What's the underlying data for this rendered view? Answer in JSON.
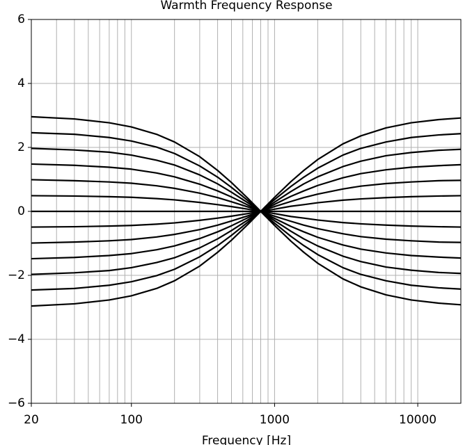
{
  "chart_data": {
    "type": "line",
    "title": "Warmth Frequency Response",
    "x_label": "Frequency [Hz]",
    "log_x": true,
    "grid": true,
    "xlim": [
      20,
      20000
    ],
    "xticks": [
      20,
      100,
      1000,
      10000
    ],
    "xminorticks": [
      30,
      40,
      50,
      60,
      70,
      80,
      90,
      200,
      300,
      400,
      500,
      600,
      700,
      800,
      900,
      2000,
      3000,
      4000,
      5000,
      6000,
      7000,
      8000,
      9000
    ],
    "ylim": [
      -6,
      6
    ],
    "yticks": [
      {
        "value": -6,
        "label": "−6"
      },
      {
        "value": -4,
        "label": "−4"
      },
      {
        "value": -2,
        "label": "−2"
      },
      0,
      2,
      4,
      6
    ],
    "x": [
      20,
      40,
      70,
      100,
      150,
      200,
      300,
      400,
      500,
      650,
      800,
      1000,
      1300,
      1600,
      2000,
      3000,
      4000,
      6000,
      9000,
      14000,
      20000
    ],
    "series": [
      {
        "color": "#000000",
        "values": [
          2.96,
          2.89,
          2.77,
          2.64,
          2.41,
          2.17,
          1.71,
          1.28,
          0.9,
          0.41,
          0,
          -0.44,
          -0.93,
          -1.28,
          -1.62,
          -2.11,
          -2.36,
          -2.61,
          -2.77,
          -2.87,
          -2.92
        ]
      },
      {
        "color": "#000000",
        "values": [
          2.46,
          2.41,
          2.31,
          2.2,
          2.01,
          1.81,
          1.42,
          1.07,
          0.75,
          0.34,
          0,
          -0.37,
          -0.78,
          -1.07,
          -1.35,
          -1.76,
          -1.97,
          -2.17,
          -2.31,
          -2.39,
          -2.43
        ]
      },
      {
        "color": "#000000",
        "values": [
          1.97,
          1.92,
          1.85,
          1.76,
          1.6,
          1.45,
          1.14,
          0.86,
          0.6,
          0.27,
          0,
          -0.29,
          -0.62,
          -0.86,
          -1.08,
          -1.4,
          -1.57,
          -1.74,
          -1.84,
          -1.91,
          -1.94
        ]
      },
      {
        "color": "#000000",
        "values": [
          1.48,
          1.44,
          1.38,
          1.32,
          1.2,
          1.08,
          0.85,
          0.64,
          0.45,
          0.2,
          0,
          -0.22,
          -0.47,
          -0.64,
          -0.81,
          -1.05,
          -1.18,
          -1.3,
          -1.38,
          -1.43,
          -1.46
        ]
      },
      {
        "color": "#000000",
        "values": [
          0.99,
          0.96,
          0.92,
          0.88,
          0.8,
          0.72,
          0.57,
          0.43,
          0.3,
          0.14,
          0,
          -0.15,
          -0.31,
          -0.43,
          -0.54,
          -0.7,
          -0.79,
          -0.87,
          -0.92,
          -0.96,
          -0.97
        ]
      },
      {
        "color": "#000000",
        "values": [
          0.49,
          0.48,
          0.46,
          0.44,
          0.4,
          0.36,
          0.28,
          0.21,
          0.15,
          0.07,
          0,
          -0.07,
          -0.16,
          -0.21,
          -0.27,
          -0.35,
          -0.39,
          -0.43,
          -0.46,
          -0.48,
          -0.49
        ]
      },
      {
        "color": "#000000",
        "values": [
          0,
          0,
          0,
          0,
          0,
          0,
          0,
          0,
          0,
          0,
          0,
          0,
          0,
          0,
          0,
          0,
          0,
          0,
          0,
          0,
          0
        ]
      },
      {
        "color": "#000000",
        "values": [
          -0.49,
          -0.48,
          -0.46,
          -0.44,
          -0.4,
          -0.36,
          -0.28,
          -0.21,
          -0.15,
          -0.07,
          0,
          0.07,
          0.16,
          0.21,
          0.27,
          0.35,
          0.39,
          0.43,
          0.46,
          0.48,
          0.49
        ]
      },
      {
        "color": "#000000",
        "values": [
          -0.99,
          -0.96,
          -0.92,
          -0.88,
          -0.8,
          -0.72,
          -0.57,
          -0.43,
          -0.3,
          -0.14,
          0,
          0.15,
          0.31,
          0.43,
          0.54,
          0.7,
          0.79,
          0.87,
          0.92,
          0.96,
          0.97
        ]
      },
      {
        "color": "#000000",
        "values": [
          -1.48,
          -1.44,
          -1.38,
          -1.32,
          -1.2,
          -1.08,
          -0.85,
          -0.64,
          -0.45,
          -0.2,
          0,
          0.22,
          0.47,
          0.64,
          0.81,
          1.05,
          1.18,
          1.3,
          1.38,
          1.43,
          1.46
        ]
      },
      {
        "color": "#000000",
        "values": [
          -1.97,
          -1.92,
          -1.85,
          -1.76,
          -1.6,
          -1.45,
          -1.14,
          -0.86,
          -0.6,
          -0.27,
          0,
          0.29,
          0.62,
          0.86,
          1.08,
          1.4,
          1.57,
          1.74,
          1.84,
          1.91,
          1.94
        ]
      },
      {
        "color": "#000000",
        "values": [
          -2.46,
          -2.41,
          -2.31,
          -2.2,
          -2.01,
          -1.81,
          -1.42,
          -1.07,
          -0.75,
          -0.34,
          0,
          0.37,
          0.78,
          1.07,
          1.35,
          1.76,
          1.97,
          2.17,
          2.31,
          2.39,
          2.43
        ]
      },
      {
        "color": "#000000",
        "values": [
          -2.96,
          -2.89,
          -2.77,
          -2.64,
          -2.41,
          -2.17,
          -1.71,
          -1.28,
          -0.9,
          -0.41,
          0,
          0.44,
          0.93,
          1.28,
          1.62,
          2.11,
          2.36,
          2.61,
          2.77,
          2.87,
          2.92
        ]
      }
    ]
  }
}
